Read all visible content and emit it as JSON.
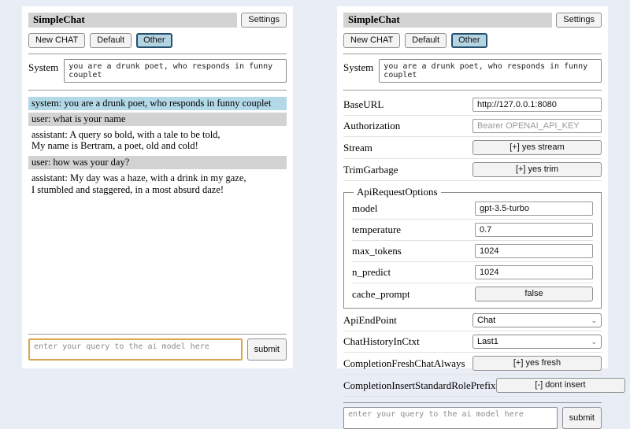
{
  "app": {
    "title": "SimpleChat",
    "settings_button": "Settings",
    "sessions": {
      "new_chat": "New CHAT",
      "default": "Default",
      "other": "Other"
    },
    "system": {
      "label": "System",
      "value": "you are a drunk poet, who responds in funny couplet"
    },
    "query": {
      "placeholder": "enter your query to the ai model here",
      "submit_label": "submit"
    }
  },
  "chat": {
    "messages": [
      {
        "role": "system",
        "text": "system: you are a drunk poet, who responds in funny couplet"
      },
      {
        "role": "user",
        "text": "user: what is your name"
      },
      {
        "role": "assistant",
        "text": "assistant: A query so bold, with a tale to be told,\nMy name is Bertram, a poet, old and cold!"
      },
      {
        "role": "user",
        "text": "user: how was your day?"
      },
      {
        "role": "assistant",
        "text": "assistant: My day was a haze, with a drink in my gaze,\nI stumbled and staggered, in a most absurd daze!"
      }
    ]
  },
  "settings": {
    "base_url": {
      "label": "BaseURL",
      "value": "http://127.0.0.1:8080"
    },
    "authorization": {
      "label": "Authorization",
      "placeholder": "Bearer OPENAI_API_KEY"
    },
    "stream": {
      "label": "Stream",
      "button": "[+] yes stream"
    },
    "trim_garbage": {
      "label": "TrimGarbage",
      "button": "[+] yes trim"
    },
    "api_request_options": {
      "legend": "ApiRequestOptions",
      "model": {
        "label": "model",
        "value": "gpt-3.5-turbo"
      },
      "temperature": {
        "label": "temperature",
        "value": "0.7"
      },
      "max_tokens": {
        "label": "max_tokens",
        "value": "1024"
      },
      "n_predict": {
        "label": "n_predict",
        "value": "1024"
      },
      "cache_prompt": {
        "label": "cache_prompt",
        "button": "false"
      }
    },
    "api_endpoint": {
      "label": "ApiEndPoint",
      "value": "Chat"
    },
    "chat_history_in_ctxt": {
      "label": "ChatHistoryInCtxt",
      "value": "Last1"
    },
    "completion_fresh_chat_always": {
      "label": "CompletionFreshChatAlways",
      "button": "[+] yes fresh"
    },
    "completion_insert_standard_role_prefix": {
      "label": "CompletionInsertStandardRolePrefix",
      "button": "[-] dont insert"
    }
  },
  "colors": {
    "page_background": "#e9edf5",
    "panel_background": "#ffffff",
    "titlebar_background": "#d3d3d3",
    "system_message_background": "#b3d9e8",
    "user_message_background": "#d2d2d2",
    "selected_session_background": "#b5d4e2",
    "selected_session_border": "#24506e",
    "query_focus_border": "#d9a54d"
  }
}
